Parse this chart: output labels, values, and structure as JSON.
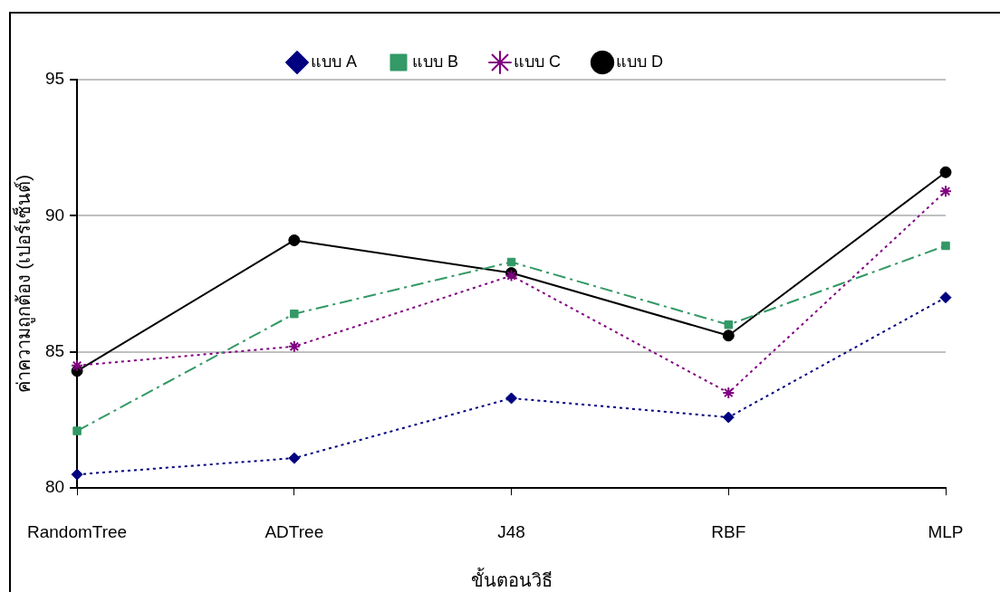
{
  "chart_data": {
    "type": "line",
    "xlabel": "ขั้นตอนวิธี",
    "ylabel": "ค่าความถูกต้อง (เปอร์เซ็นต์)",
    "categories": [
      "RandomTree",
      "ADTree",
      "J48",
      "RBF",
      "MLP"
    ],
    "ylim": [
      80,
      95
    ],
    "yticks": [
      80,
      85,
      90,
      95
    ],
    "grid": "y",
    "legend": "top",
    "series": [
      {
        "name": "แบบ A",
        "color": "#000080",
        "marker": "diamond",
        "line_style": "dotted",
        "values": [
          80.5,
          81.1,
          83.3,
          82.6,
          87.0
        ]
      },
      {
        "name": "แบบ B",
        "color": "#339966",
        "marker": "square",
        "line_style": "dashed",
        "values": [
          82.1,
          86.4,
          88.3,
          86.0,
          88.9
        ]
      },
      {
        "name": "แบบ C",
        "color": "#800080",
        "marker": "cross",
        "line_style": "dotted",
        "values": [
          84.5,
          85.2,
          87.8,
          83.5,
          90.9
        ]
      },
      {
        "name": "แบบ D",
        "color": "#000000",
        "marker": "circle",
        "line_style": "solid",
        "values": [
          84.3,
          89.1,
          87.9,
          85.6,
          91.6
        ]
      }
    ]
  }
}
